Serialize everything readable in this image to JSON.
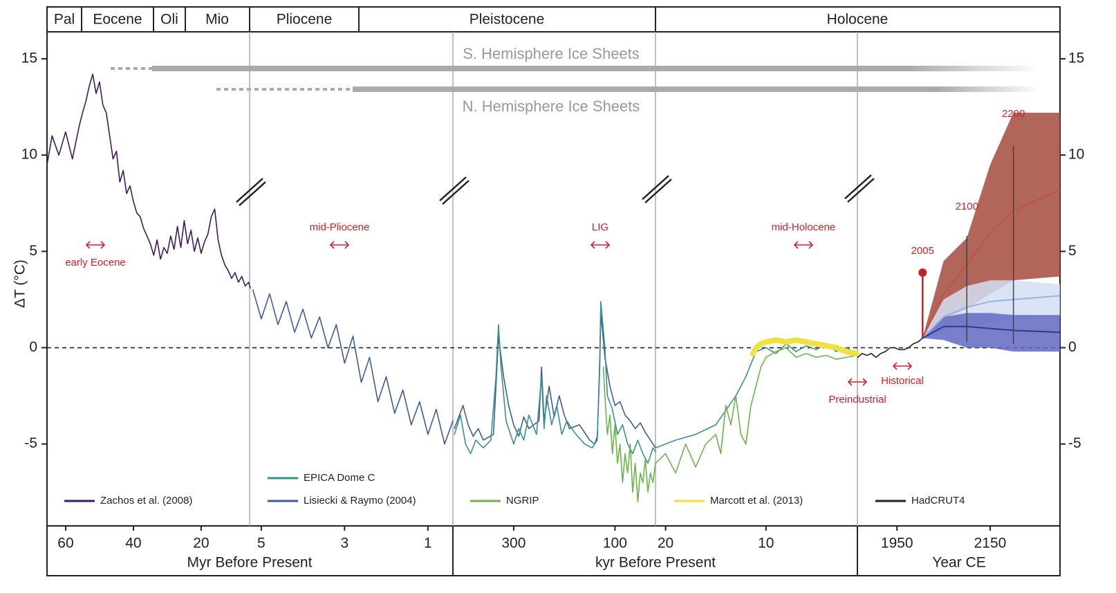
{
  "chart_data": {
    "type": "line",
    "epochs": [
      "Pal",
      "Eocene",
      "Oli",
      "Mio",
      "Pliocene",
      "Pleistocene",
      "Holocene"
    ],
    "y_label": "ΔT (°C)",
    "ylim": [
      -9.25,
      16.4
    ],
    "yticks": [
      15,
      10,
      5,
      0,
      -5
    ],
    "panels": [
      {
        "xlim": [
          65.5,
          5.7
        ],
        "xticks": [
          60,
          40,
          20
        ]
      },
      {
        "xlim": [
          5.28,
          0.4
        ],
        "xticks": [
          5,
          3,
          1
        ]
      },
      {
        "xlim": [
          420,
          20
        ],
        "xticks": [
          300,
          100
        ]
      },
      {
        "xlim": [
          21,
          0.9
        ],
        "xticks": [
          20,
          10
        ]
      },
      {
        "xlim": [
          1865,
          2300
        ],
        "xticks": [
          1950,
          2150
        ]
      }
    ],
    "x_axis_labels": [
      "Myr Before Present",
      "kyr Before Present",
      "Year CE"
    ],
    "series": [
      {
        "name": "Zachos et al. (2008)",
        "color": "#3d1a5e",
        "parts": [
          {
            "panel": 0,
            "x": [
              65.5,
              64,
              62,
              60,
              58,
              56,
              55,
              54,
              53,
              52,
              51,
              50,
              49,
              48,
              47,
              46,
              45,
              44,
              43,
              42,
              41,
              40,
              39,
              38,
              37,
              36,
              35,
              34,
              33,
              32,
              31,
              30,
              29,
              28,
              27,
              26,
              25,
              24,
              23,
              22,
              21,
              20,
              19,
              18,
              17,
              16,
              15,
              14,
              13,
              12,
              11,
              10,
              9,
              8,
              7,
              6,
              5.5
            ],
            "values": [
              9.5,
              11,
              10,
              11.2,
              9.8,
              11.5,
              12.2,
              12.8,
              13.6,
              14.2,
              13.2,
              13.8,
              12.6,
              12.2,
              11,
              9.8,
              10.2,
              8.6,
              9.2,
              8,
              8.4,
              7.6,
              7,
              6.8,
              6.2,
              5.8,
              5.4,
              4.8,
              5.6,
              4.6,
              5.2,
              4.9,
              5.8,
              5.1,
              6.3,
              5.2,
              6.6,
              5.4,
              6.1,
              5.0,
              5.7,
              4.9,
              5.5,
              5.9,
              6.8,
              7.2,
              5.6,
              4.8,
              4.3,
              4.0,
              3.6,
              3.9,
              3.4,
              3.7,
              3.2,
              3.4,
              3.1
            ]
          }
        ]
      },
      {
        "name": "Lisiecki & Raymo (2004)",
        "color": "#3f5a99",
        "parts": [
          {
            "panel": 1,
            "x": [
              5.2,
              5.0,
              4.8,
              4.6,
              4.4,
              4.2,
              4.0,
              3.8,
              3.6,
              3.4,
              3.2,
              3.0,
              2.8,
              2.6,
              2.4,
              2.2,
              2.0,
              1.8,
              1.6,
              1.4,
              1.2,
              1.0,
              0.8,
              0.6,
              0.4
            ],
            "values": [
              3,
              1.5,
              2.8,
              1.2,
              2.4,
              0.8,
              2,
              0.5,
              1.6,
              0,
              1.2,
              -0.8,
              0.6,
              -1.8,
              -0.5,
              -2.8,
              -1.5,
              -3.4,
              -2.2,
              -4,
              -2.8,
              -4.5,
              -3.2,
              -5,
              -3.8
            ]
          },
          {
            "panel": 2,
            "x": [
              417,
              400,
              390,
              380,
              370,
              360,
              340,
              335,
              330,
              320,
              310,
              300,
              290,
              280,
              270,
              250,
              245,
              240,
              230,
              220,
              210,
              200,
              190,
              170,
              150,
              140,
              135,
              130,
              128,
              125,
              120,
              110,
              100,
              90,
              80,
              70,
              60,
              50,
              40,
              30,
              20
            ],
            "values": [
              -4.2,
              -3,
              -4,
              -4.6,
              -4.2,
              -4.8,
              -4.5,
              -2,
              0.6,
              -1.5,
              -3,
              -4,
              -4.6,
              -3.6,
              -4.2,
              -3.8,
              -1,
              -3.8,
              -2,
              -3.6,
              -2.5,
              -3.5,
              -4.2,
              -4,
              -4.8,
              -5,
              -4.6,
              -1,
              1.8,
              1,
              -0.5,
              -2,
              -3,
              -2.8,
              -3.5,
              -3.8,
              -4.2,
              -3.9,
              -4.4,
              -4.8,
              -5.2
            ]
          }
        ]
      },
      {
        "name": "EPICA Dome C",
        "color": "#3a8f8f",
        "parts": [
          {
            "panel": 2,
            "x": [
              417,
              405,
              395,
              385,
              375,
              360,
              345,
              335,
              330,
              325,
              315,
              300,
              290,
              280,
              270,
              255,
              245,
              240,
              235,
              225,
              215,
              205,
              195,
              180,
              160,
              145,
              135,
              130,
              128,
              125,
              120,
              115,
              105,
              95,
              85,
              75,
              65,
              55,
              45,
              35,
              25,
              20
            ],
            "values": [
              -4.5,
              -3.5,
              -5,
              -5.5,
              -4.8,
              -5.2,
              -4.8,
              -1.5,
              1.2,
              -1,
              -3.8,
              -5,
              -4.2,
              -4.8,
              -3.5,
              -4.5,
              -1.5,
              -4.2,
              -2.5,
              -4,
              -3,
              -4.5,
              -3.8,
              -4.4,
              -5,
              -5.2,
              -4.8,
              -0.5,
              2.4,
              1.5,
              0,
              -2.5,
              -3.2,
              -4.5,
              -4,
              -5,
              -5.5,
              -4.8,
              -5.5,
              -6,
              -5.2,
              -5.4
            ]
          },
          {
            "panel": 3,
            "x": [
              21,
              19,
              17,
              15,
              13,
              12,
              11,
              10,
              9,
              8,
              7,
              6,
              5,
              4,
              3,
              2,
              1
            ],
            "values": [
              -5.2,
              -4.8,
              -4.5,
              -4,
              -2.5,
              -1.5,
              -0.2,
              0,
              -0.3,
              0.2,
              -0.2,
              0.1,
              -0.1,
              0.2,
              -0.2,
              0,
              -0.3
            ]
          }
        ]
      },
      {
        "name": "NGRIP",
        "color": "#6cb34a",
        "parts": [
          {
            "panel": 2,
            "x": [
              123,
              120,
              115,
              110,
              105,
              100,
              95,
              90,
              85,
              80,
              75,
              70,
              65,
              60,
              55,
              50,
              45,
              40,
              35,
              30,
              25,
              20
            ],
            "values": [
              -1,
              -2.5,
              -4.5,
              -3.5,
              -5.5,
              -4,
              -6,
              -5,
              -7,
              -5.5,
              -6.5,
              -5,
              -7.5,
              -6,
              -8,
              -6.5,
              -7,
              -5.8,
              -7.5,
              -6.5,
              -7,
              -6
            ]
          },
          {
            "panel": 3,
            "x": [
              21,
              20,
              19,
              18,
              17,
              16,
              15,
              14.5,
              14,
              13.5,
              13,
              12.5,
              12,
              11.5,
              11,
              10.5,
              10,
              9,
              8,
              7,
              6,
              5,
              4,
              3,
              2,
              1
            ],
            "values": [
              -6,
              -5.5,
              -6.5,
              -5,
              -6.2,
              -5,
              -4.5,
              -5.5,
              -3,
              -4,
              -2.5,
              -4.5,
              -5,
              -3,
              -2,
              -1,
              -0.5,
              -0.2,
              0,
              -0.5,
              -0.3,
              -0.5,
              -0.4,
              -0.6,
              -0.5,
              -0.4
            ]
          }
        ]
      },
      {
        "name": "Marcott et al. (2013)",
        "color": "#f0e040",
        "parts": [
          {
            "panel": 3,
            "x": [
              11.3,
              11,
              10.5,
              10,
              9,
              8,
              7,
              6,
              5,
              4,
              3,
              2,
              1
            ],
            "values": [
              -0.3,
              0,
              0.2,
              0.3,
              0.4,
              0.3,
              0.4,
              0.3,
              0.2,
              0.1,
              0,
              -0.2,
              -0.3
            ]
          }
        ]
      },
      {
        "name": "HadCRUT4",
        "color": "#222222",
        "parts": [
          {
            "panel": 4,
            "x": [
              1866,
              1875,
              1885,
              1895,
              1905,
              1915,
              1925,
              1935,
              1945,
              1955,
              1965,
              1975,
              1985,
              1995,
              2005
            ],
            "values": [
              -0.5,
              -0.3,
              -0.4,
              -0.3,
              -0.5,
              -0.3,
              -0.2,
              0,
              0,
              -0.1,
              -0.1,
              0,
              0.2,
              0.3,
              0.5
            ]
          }
        ]
      }
    ],
    "projections": [
      {
        "color": "#a44a3c",
        "line_color": "#c0553f",
        "x": [
          2005,
          2050,
          2100,
          2150,
          2200,
          2300
        ],
        "values": [
          0.5,
          2.8,
          4.3,
          6,
          7.1,
          8.2
        ],
        "lower": [
          0.5,
          1.5,
          2,
          2.8,
          3.5,
          3.7
        ],
        "upper": [
          0.5,
          4.5,
          5.7,
          9.5,
          12.2,
          12.2
        ]
      },
      {
        "color": "#d4def3",
        "line_color": "#9ab0de",
        "x": [
          2005,
          2050,
          2100,
          2150,
          2200,
          2300
        ],
        "values": [
          0.5,
          1.6,
          2.1,
          2.4,
          2.5,
          2.7
        ],
        "lower": [
          0.5,
          0.9,
          1,
          1.3,
          1.5,
          1.6
        ],
        "upper": [
          0.5,
          2.5,
          3.2,
          3.5,
          3.5,
          3.3
        ]
      },
      {
        "color": "#6168bf",
        "line_color": "#2f3a96",
        "x": [
          2005,
          2050,
          2100,
          2150,
          2200,
          2300
        ],
        "values": [
          0.5,
          1.1,
          1.1,
          1,
          0.9,
          0.8
        ],
        "lower": [
          0.5,
          0.4,
          0,
          0,
          -0.2,
          -0.2
        ],
        "upper": [
          0.5,
          1.6,
          1.8,
          1.8,
          1.7,
          1.7
        ]
      }
    ],
    "events": [
      {
        "label": "2005",
        "x": 2005,
        "low": 0.5,
        "high": 3.9
      },
      {
        "label": "2100",
        "x": 2100,
        "low": 0.3,
        "high": 5.8
      },
      {
        "label": "2200",
        "x": 2200,
        "low": 0.2,
        "high": 10.5
      }
    ],
    "annotations": [
      "S. Hemisphere Ice Sheets",
      "N. Hemisphere Ice Sheets",
      "early Eocene",
      "mid-Pliocene",
      "LIG",
      "mid-Holocene",
      "Preindustrial",
      "Historical"
    ]
  }
}
